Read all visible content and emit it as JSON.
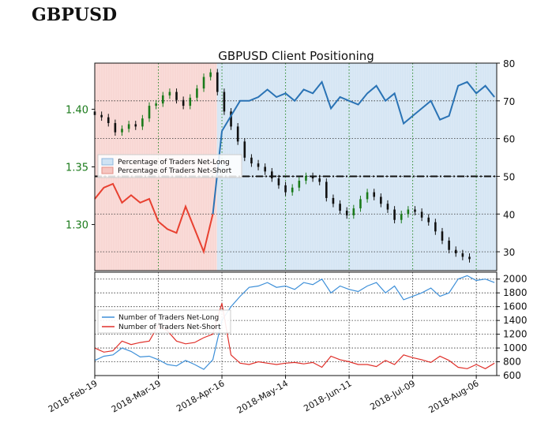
{
  "header": {
    "title": "GBPUSD"
  },
  "chart_data": [
    {
      "type": "line",
      "title": "GBPUSD Client Positioning",
      "price_axis": {
        "ylim": [
          1.26,
          1.44
        ],
        "ticks": [
          1.3,
          1.35,
          1.4
        ],
        "tick_labels": [
          "1.30",
          "1.35",
          "1.40"
        ],
        "color": "#1a7a1a"
      },
      "pct_axis": {
        "ylim": [
          25,
          80
        ],
        "ticks": [
          30,
          40,
          50,
          60,
          70,
          80
        ],
        "tick_labels": [
          "30",
          "40",
          "50",
          "60",
          "70",
          "80"
        ]
      },
      "reference_line": 50,
      "legend": {
        "placement": "left",
        "entries": [
          "Percentage of Traders Net-Long",
          "Percentage of Traders Net-Short"
        ]
      },
      "colors": {
        "net_long": "#2a73b5",
        "net_short": "#e84030",
        "long_fill": "#dbe9f5",
        "short_fill": "#fadcd9",
        "candle_up": "#1a7a1a",
        "candle_down": "#111111",
        "vgrid": "#2e8b2e"
      },
      "series": [
        {
          "name": "Percentage of Traders Net-Long",
          "x": [
            0,
            4,
            8,
            12,
            16,
            20,
            24,
            28,
            32,
            36,
            40,
            44,
            48,
            52,
            56,
            60,
            64,
            68,
            72,
            76,
            80,
            84,
            88,
            92,
            96,
            100,
            104,
            108,
            112,
            116,
            120,
            124,
            128,
            132,
            136,
            140,
            144,
            148,
            152,
            156,
            160,
            164,
            168,
            172,
            176
          ],
          "values": [
            44,
            47,
            48,
            43,
            45,
            43,
            44,
            38,
            36,
            35,
            42,
            36,
            30,
            40,
            62,
            66,
            70,
            70,
            71,
            73,
            71,
            72,
            70,
            73,
            72,
            75,
            68,
            71,
            70,
            69,
            72,
            74,
            70,
            72,
            64,
            66,
            68,
            70,
            65,
            66,
            74,
            75,
            72,
            74,
            71
          ]
        }
      ],
      "candles": [
        {
          "x": 0,
          "o": 1.398,
          "c": 1.395
        },
        {
          "x": 3,
          "o": 1.395,
          "c": 1.393
        },
        {
          "x": 6,
          "o": 1.393,
          "c": 1.388
        },
        {
          "x": 9,
          "o": 1.388,
          "c": 1.38
        },
        {
          "x": 12,
          "o": 1.38,
          "c": 1.383
        },
        {
          "x": 15,
          "o": 1.383,
          "c": 1.387
        },
        {
          "x": 18,
          "o": 1.387,
          "c": 1.385
        },
        {
          "x": 21,
          "o": 1.385,
          "c": 1.392
        },
        {
          "x": 24,
          "o": 1.392,
          "c": 1.403
        },
        {
          "x": 27,
          "o": 1.403,
          "c": 1.405
        },
        {
          "x": 30,
          "o": 1.405,
          "c": 1.412
        },
        {
          "x": 33,
          "o": 1.412,
          "c": 1.415
        },
        {
          "x": 36,
          "o": 1.415,
          "c": 1.408
        },
        {
          "x": 39,
          "o": 1.408,
          "c": 1.403
        },
        {
          "x": 42,
          "o": 1.403,
          "c": 1.41
        },
        {
          "x": 45,
          "o": 1.41,
          "c": 1.418
        },
        {
          "x": 48,
          "o": 1.418,
          "c": 1.428
        },
        {
          "x": 51,
          "o": 1.428,
          "c": 1.432
        },
        {
          "x": 54,
          "o": 1.432,
          "c": 1.415
        },
        {
          "x": 57,
          "o": 1.415,
          "c": 1.398
        },
        {
          "x": 60,
          "o": 1.398,
          "c": 1.385
        },
        {
          "x": 63,
          "o": 1.385,
          "c": 1.372
        },
        {
          "x": 66,
          "o": 1.372,
          "c": 1.358
        },
        {
          "x": 69,
          "o": 1.358,
          "c": 1.353
        },
        {
          "x": 72,
          "o": 1.353,
          "c": 1.35
        },
        {
          "x": 75,
          "o": 1.35,
          "c": 1.346
        },
        {
          "x": 78,
          "o": 1.346,
          "c": 1.34
        },
        {
          "x": 81,
          "o": 1.34,
          "c": 1.334
        },
        {
          "x": 84,
          "o": 1.334,
          "c": 1.328
        },
        {
          "x": 87,
          "o": 1.328,
          "c": 1.332
        },
        {
          "x": 90,
          "o": 1.332,
          "c": 1.338
        },
        {
          "x": 93,
          "o": 1.338,
          "c": 1.342
        },
        {
          "x": 96,
          "o": 1.342,
          "c": 1.34
        },
        {
          "x": 99,
          "o": 1.34,
          "c": 1.337
        },
        {
          "x": 102,
          "o": 1.337,
          "c": 1.323
        },
        {
          "x": 105,
          "o": 1.323,
          "c": 1.318
        },
        {
          "x": 108,
          "o": 1.318,
          "c": 1.312
        },
        {
          "x": 111,
          "o": 1.312,
          "c": 1.308
        },
        {
          "x": 114,
          "o": 1.308,
          "c": 1.314
        },
        {
          "x": 117,
          "o": 1.314,
          "c": 1.322
        },
        {
          "x": 120,
          "o": 1.322,
          "c": 1.328
        },
        {
          "x": 123,
          "o": 1.328,
          "c": 1.324
        },
        {
          "x": 126,
          "o": 1.324,
          "c": 1.318
        },
        {
          "x": 129,
          "o": 1.318,
          "c": 1.313
        },
        {
          "x": 132,
          "o": 1.313,
          "c": 1.304
        },
        {
          "x": 135,
          "o": 1.304,
          "c": 1.309
        },
        {
          "x": 138,
          "o": 1.309,
          "c": 1.313
        },
        {
          "x": 141,
          "o": 1.313,
          "c": 1.311
        },
        {
          "x": 144,
          "o": 1.311,
          "c": 1.306
        },
        {
          "x": 147,
          "o": 1.306,
          "c": 1.302
        },
        {
          "x": 150,
          "o": 1.302,
          "c": 1.294
        },
        {
          "x": 153,
          "o": 1.294,
          "c": 1.286
        },
        {
          "x": 156,
          "o": 1.286,
          "c": 1.278
        },
        {
          "x": 159,
          "o": 1.278,
          "c": 1.275
        },
        {
          "x": 162,
          "o": 1.275,
          "c": 1.272
        },
        {
          "x": 165,
          "o": 1.272,
          "c": 1.27
        }
      ]
    },
    {
      "type": "line",
      "title": "",
      "ylim": [
        600,
        2100
      ],
      "ticks": [
        600,
        800,
        1000,
        1200,
        1400,
        1600,
        1800,
        2000
      ],
      "tick_labels": [
        "600",
        "800",
        "1000",
        "1200",
        "1400",
        "1600",
        "1800",
        "2000"
      ],
      "legend": {
        "placement": "left",
        "entries": [
          "Number of Traders Net-Long",
          "Number of Traders Net-Short"
        ]
      },
      "x_tick_labels": [
        "2018-Feb-19",
        "2018-Mar-19",
        "2018-Apr-16",
        "2018-May-14",
        "2018-Jun-11",
        "2018-Jul-09",
        "2018-Aug-06"
      ],
      "x_ticks": [
        0,
        28,
        56,
        84,
        112,
        140,
        168
      ],
      "colors": {
        "net_long": "#3d8fd8",
        "net_short": "#e0302a"
      },
      "series": [
        {
          "name": "Number of Traders Net-Long",
          "x": [
            0,
            4,
            8,
            12,
            16,
            20,
            24,
            28,
            32,
            36,
            40,
            44,
            48,
            52,
            56,
            60,
            64,
            68,
            72,
            76,
            80,
            84,
            88,
            92,
            96,
            100,
            104,
            108,
            112,
            116,
            120,
            124,
            128,
            132,
            136,
            140,
            144,
            148,
            152,
            156,
            160,
            164,
            168,
            172,
            176
          ],
          "values": [
            820,
            880,
            900,
            1000,
            950,
            870,
            880,
            830,
            760,
            740,
            820,
            760,
            690,
            830,
            1400,
            1600,
            1750,
            1880,
            1900,
            1950,
            1880,
            1900,
            1850,
            1950,
            1920,
            2000,
            1800,
            1900,
            1850,
            1820,
            1900,
            1950,
            1800,
            1900,
            1700,
            1750,
            1800,
            1870,
            1750,
            1800,
            2000,
            2050,
            1980,
            2000,
            1950
          ]
        },
        {
          "name": "Number of Traders Net-Short",
          "x": [
            0,
            4,
            8,
            12,
            16,
            20,
            24,
            28,
            32,
            36,
            40,
            44,
            48,
            52,
            56,
            60,
            64,
            68,
            72,
            76,
            80,
            84,
            88,
            92,
            96,
            100,
            104,
            108,
            112,
            116,
            120,
            124,
            128,
            132,
            136,
            140,
            144,
            148,
            152,
            156,
            160,
            164,
            168,
            172,
            176
          ],
          "values": [
            1000,
            940,
            960,
            1100,
            1050,
            1080,
            1100,
            1330,
            1250,
            1100,
            1060,
            1080,
            1150,
            1200,
            1650,
            900,
            780,
            760,
            800,
            780,
            760,
            780,
            790,
            770,
            790,
            720,
            880,
            830,
            800,
            760,
            760,
            730,
            820,
            760,
            900,
            860,
            830,
            790,
            880,
            820,
            720,
            700,
            760,
            700,
            780
          ]
        }
      ]
    }
  ]
}
